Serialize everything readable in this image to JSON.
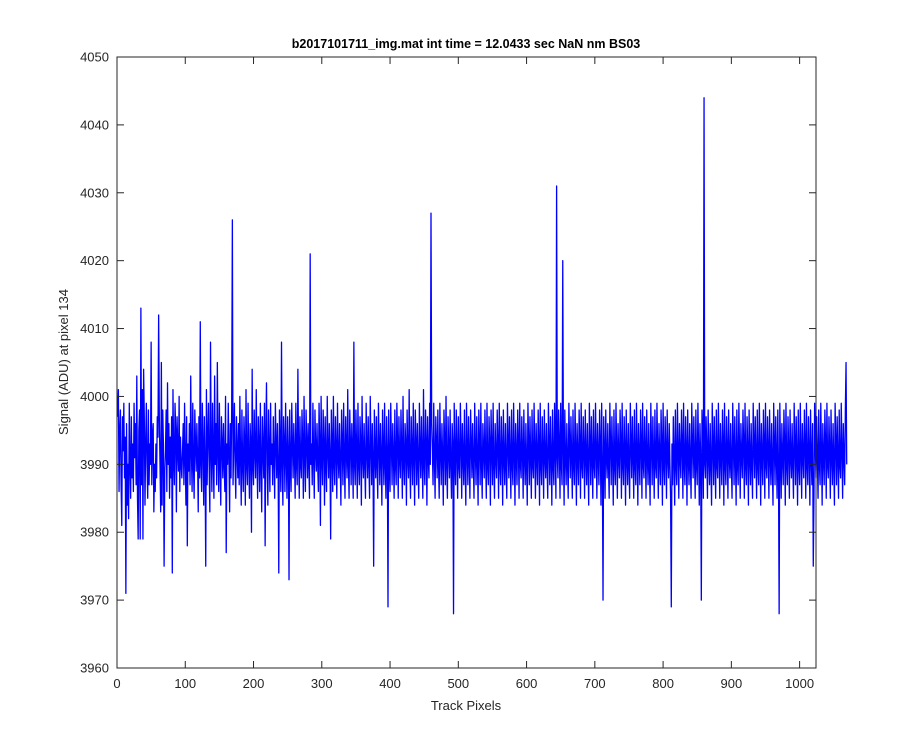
{
  "figure": {
    "background": "#ffffff"
  },
  "chart_data": {
    "type": "line",
    "title": "b2017101711_img.mat int time = 12.0433 sec  NaN nm BS03",
    "xlabel": "Track Pixels",
    "ylabel": "Signal (ADU) at pixel 134",
    "xlim": [
      0,
      1024
    ],
    "ylim": [
      3960,
      4050
    ],
    "x_ticks": [
      0,
      100,
      200,
      300,
      400,
      500,
      600,
      700,
      800,
      900,
      1000
    ],
    "y_ticks": [
      3960,
      3970,
      3980,
      3990,
      4000,
      4010,
      4020,
      4030,
      4040,
      4050
    ],
    "grid": false,
    "legend": "none",
    "series": [
      {
        "color": "#0000ff",
        "x_start": 1,
        "x_step": 1,
        "values": [
          3997,
          4001,
          3986,
          3995,
          3998,
          3987,
          3981,
          3997,
          3992,
          3999,
          3988,
          3994,
          3971,
          3996,
          3984,
          3990,
          3982,
          3999,
          3990,
          3985,
          3997,
          3988,
          3993,
          3986,
          3999,
          3991,
          3996,
          3987,
          4003,
          3985,
          3979,
          3995,
          3998,
          3979,
          4013,
          3987,
          4001,
          3979,
          4004,
          3997,
          3984,
          3993,
          3999,
          3990,
          3985,
          3998,
          3987,
          3993,
          3990,
          4008,
          3987,
          3994,
          3996,
          3983,
          3990,
          3986,
          3993,
          3988,
          3997,
          3994,
          4012,
          3997,
          3990,
          3983,
          4005,
          3984,
          3998,
          3993,
          3975,
          3989,
          3992,
          3998,
          3986,
          4002,
          3990,
          3996,
          3985,
          3994,
          3988,
          3997,
          3974,
          4001,
          3991,
          3987,
          3999,
          3995,
          3983,
          3997,
          3992,
          3989,
          4000,
          3986,
          3994,
          3990,
          3988,
          3992,
          3996,
          3987,
          3999,
          3991,
          3984,
          3997,
          3978,
          3993,
          3989,
          3996,
          3987,
          4003,
          3992,
          3986,
          3999,
          3990,
          3985,
          3998,
          3993,
          3989,
          3996,
          3991,
          3983,
          3997,
          3988,
          4011,
          3990,
          3986,
          3999,
          3993,
          3984,
          3997,
          3990,
          3975,
          4001,
          3987,
          3994,
          3999,
          3990,
          3983,
          4008,
          3992,
          3986,
          3999,
          3991,
          3985,
          4003,
          3990,
          3996,
          3987,
          4005,
          3992,
          3986,
          3999,
          3990,
          3984,
          3997,
          3993,
          3988,
          3996,
          3990,
          3986,
          4000,
          3977,
          3993,
          3990,
          3999,
          3991,
          3983,
          3996,
          3988,
          3998,
          4026,
          3987,
          3993,
          3999,
          3990,
          3985,
          3997,
          3992,
          3988,
          3996,
          3987,
          4000,
          3991,
          3984,
          3998,
          3990,
          3986,
          3997,
          3993,
          3984,
          4001,
          3990,
          3987,
          3999,
          3991,
          3985,
          3996,
          3993,
          3980,
          4004,
          3990,
          3987,
          3998,
          3992,
          3988,
          4001,
          3991,
          3985,
          3997,
          3993,
          3986,
          3999,
          3990,
          3983,
          3997,
          3992,
          3988,
          3999,
          3978,
          3994,
          4002,
          3990,
          3984,
          3998,
          3992,
          3986,
          3999,
          3990,
          3993,
          3987,
          3997,
          3991,
          3985,
          3999,
          3993,
          3988,
          3996,
          3990,
          3974,
          3998,
          3992,
          3986,
          4008,
          3990,
          3984,
          3997,
          3993,
          3986,
          3999,
          3991,
          3985,
          3997,
          3992,
          3973,
          3998,
          3990,
          3986,
          3999,
          3993,
          3988,
          3996,
          3991,
          3985,
          3999,
          3990,
          3987,
          4004,
          3992,
          3985,
          3997,
          3990,
          3988,
          3998,
          3993,
          3985,
          4000,
          3991,
          3986,
          3998,
          3993,
          3988,
          3996,
          3990,
          3985,
          4021,
          3990,
          3993,
          3987,
          3999,
          3991,
          3985,
          3998,
          3992,
          3989,
          3996,
          3990,
          3986,
          3999,
          3993,
          3981,
          4000,
          3991,
          3987,
          3998,
          3993,
          3984,
          3997,
          3990,
          3986,
          4000,
          3992,
          3988,
          3996,
          3991,
          3979,
          3998,
          3993,
          3986,
          4000,
          3990,
          3987,
          3997,
          3992,
          3985,
          3999,
          3991,
          3988,
          3996,
          3990,
          3984,
          3998,
          3993,
          3987,
          3999,
          3991,
          3985,
          3997,
          3992,
          3988,
          4001,
          3990,
          3985,
          3998,
          3993,
          3987,
          3996,
          3991,
          3985,
          4008,
          3990,
          3987,
          3998,
          3992,
          3985,
          3999,
          3990,
          3987,
          3997,
          3993,
          3984,
          4000,
          3991,
          3988,
          3996,
          3990,
          3985,
          3999,
          3992,
          3988,
          3997,
          3990,
          3985,
          4000,
          3993,
          3987,
          3996,
          3991,
          3975,
          3998,
          3992,
          3988,
          3997,
          3990,
          3985,
          3999,
          3993,
          3987,
          3996,
          3991,
          3984,
          3998,
          3992,
          3987,
          3999,
          3990,
          3985,
          3997,
          3992,
          3969,
          3998,
          3990,
          3986,
          3999,
          3993,
          3987,
          3996,
          3991,
          3985,
          3998,
          3990,
          3987,
          3999,
          3993,
          3985,
          3997,
          3991,
          3988,
          3998,
          3992,
          3985,
          4000,
          3990,
          3987,
          3996,
          3993,
          3984,
          3998,
          3991,
          3988,
          4001,
          3990,
          3985,
          3997,
          3992,
          3987,
          3999,
          3991,
          3984,
          3998,
          3993,
          3987,
          3996,
          3990,
          3985,
          3999,
          3992,
          3988,
          3997,
          3991,
          3985,
          4001,
          3990,
          3987,
          3998,
          3993,
          3984,
          3997,
          3991,
          3988,
          3999,
          3990,
          4027,
          3996,
          3992,
          3987,
          3999,
          3991,
          3985,
          3997,
          3993,
          3988,
          3998,
          3990,
          3985,
          3999,
          3992,
          3987,
          3996,
          3991,
          3984,
          3998,
          3993,
          3987,
          4000,
          3990,
          3985,
          3997,
          3992,
          3988,
          3998,
          3990,
          3985,
          3996,
          3993,
          3968,
          3999,
          3991,
          3987,
          3998,
          3992,
          3985,
          3997,
          3990,
          3988,
          3999,
          3993,
          3985,
          3996,
          3991,
          3987,
          3998,
          3990,
          3984,
          3999,
          3992,
          3987,
          3997,
          3991,
          3985,
          3998,
          3993,
          3988,
          3996,
          3990,
          3985,
          3999,
          3992,
          3987,
          3997,
          3991,
          3984,
          3998,
          3993,
          3987,
          3999,
          3990,
          3985,
          3996,
          3992,
          3988,
          3998,
          3991,
          3985,
          3999,
          3990,
          3987,
          3997,
          3993,
          3984,
          3998,
          3992,
          3987,
          3999,
          3990,
          3985,
          3996,
          3991,
          3988,
          3998,
          3993,
          3985,
          3999,
          3990,
          3987,
          3997,
          3992,
          3984,
          3998,
          3991,
          3987,
          3996,
          3990,
          3985,
          3999,
          3993,
          3988,
          3997,
          3991,
          3985,
          3998,
          3990,
          3987,
          3999,
          3992,
          3984,
          3996,
          3991,
          3987,
          3998,
          3993,
          3985,
          3999,
          3990,
          3988,
          3997,
          3992,
          3985,
          3998,
          3991,
          3987,
          3996,
          3990,
          3984,
          3999,
          3993,
          3987,
          3997,
          3991,
          3985,
          3998,
          3990,
          3988,
          3999,
          3992,
          3985,
          3996,
          3991,
          3987,
          3998,
          3993,
          3984,
          3999,
          3990,
          3987,
          3997,
          3992,
          3985,
          3998,
          3991,
          3988,
          3996,
          3990,
          3985,
          3999,
          3993,
          3987,
          3997,
          3991,
          3984,
          3998,
          3990,
          3987,
          3999,
          3992,
          3985,
          4031,
          3991,
          3988,
          3998,
          3993,
          3985,
          3999,
          3990,
          3987,
          4020,
          3992,
          3984,
          3998,
          3991,
          3987,
          3996,
          3990,
          3985,
          3999,
          3993,
          3988,
          3997,
          3991,
          3985,
          3998,
          3990,
          3987,
          3999,
          3992,
          3984,
          3996,
          3991,
          3987,
          3998,
          3993,
          3985,
          3999,
          3990,
          3988,
          3997,
          3992,
          3985,
          3998,
          3991,
          3987,
          3996,
          3990,
          3984,
          3999,
          3993,
          3987,
          3997,
          3991,
          3985,
          3998,
          3990,
          3988,
          3999,
          3992,
          3985,
          3996,
          3991,
          3987,
          3998,
          3993,
          3984,
          3999,
          3990,
          3970,
          3997,
          3992,
          3985,
          3998,
          3991,
          3988,
          3996,
          3990,
          3985,
          3999,
          3993,
          3987,
          3997,
          3991,
          3984,
          3998,
          3990,
          3987,
          3999,
          3992,
          3985,
          3996,
          3991,
          3988,
          3998,
          3993,
          3985,
          3999,
          3990,
          3987,
          3997,
          3992,
          3984,
          3998,
          3991,
          3987,
          3996,
          3990,
          3985,
          3999,
          3993,
          3988,
          3997,
          3991,
          3985,
          3998,
          3990,
          3987,
          3999,
          3992,
          3984,
          3996,
          3991,
          3987,
          3998,
          3993,
          3985,
          3999,
          3990,
          3988,
          3997,
          3992,
          3985,
          3998,
          3991,
          3987,
          3996,
          3990,
          3984,
          3999,
          3993,
          3987,
          3997,
          3991,
          3985,
          3998,
          3990,
          3988,
          3999,
          3992,
          3985,
          3996,
          3991,
          3987,
          3998,
          3993,
          3984,
          3999,
          3990,
          3987,
          3997,
          3992,
          3985,
          3998,
          3991,
          3988,
          3996,
          3990,
          3985,
          3969,
          3993,
          3987,
          3997,
          3991,
          3984,
          3998,
          3990,
          3987,
          3999,
          3992,
          3985,
          3996,
          3991,
          3988,
          3998,
          3993,
          3985,
          3999,
          3990,
          3987,
          3997,
          3992,
          3984,
          3998,
          3991,
          3987,
          3996,
          3990,
          3985,
          3999,
          3993,
          3988,
          3997,
          3991,
          3985,
          3998,
          3990,
          3987,
          3999,
          3992,
          3984,
          3996,
          3991,
          3970,
          3998,
          3993,
          3985,
          4044,
          3990,
          3988,
          3997,
          3992,
          3985,
          3998,
          3991,
          3987,
          3996,
          3990,
          3984,
          3999,
          3993,
          3987,
          3997,
          3991,
          3985,
          3998,
          3990,
          3988,
          3999,
          3992,
          3985,
          3996,
          3991,
          3987,
          3998,
          3993,
          3984,
          3999,
          3990,
          3987,
          3997,
          3992,
          3985,
          3998,
          3991,
          3988,
          3996,
          3990,
          3985,
          3999,
          3993,
          3987,
          3997,
          3991,
          3984,
          3998,
          3990,
          3987,
          3999,
          3992,
          3985,
          3996,
          3991,
          3988,
          3998,
          3993,
          3985,
          3999,
          3990,
          3987,
          3997,
          3992,
          3984,
          3998,
          3991,
          3987,
          3996,
          3990,
          3985,
          3999,
          3993,
          3988,
          3997,
          3991,
          3985,
          3998,
          3990,
          3987,
          3999,
          3992,
          3984,
          3996,
          3991,
          3987,
          3998,
          3993,
          3985,
          3999,
          3990,
          3988,
          3997,
          3992,
          3985,
          3998,
          3991,
          3987,
          3996,
          3990,
          3984,
          3999,
          3993,
          3987,
          3997,
          3991,
          3985,
          3998,
          3990,
          3968,
          3999,
          3992,
          3985,
          3996,
          3991,
          3987,
          3998,
          3993,
          3984,
          3999,
          3990,
          3987,
          3997,
          3992,
          3985,
          3998,
          3991,
          3988,
          3996,
          3990,
          3985,
          3999,
          3993,
          3987,
          3997,
          3991,
          3984,
          3998,
          3990,
          3987,
          3999,
          3992,
          3985,
          3996,
          3991,
          3988,
          3998,
          3993,
          3985,
          3999,
          3990,
          3987,
          3997,
          3992,
          3984,
          3998,
          3991,
          3987,
          3996,
          3975,
          3985,
          3999,
          3993,
          3988,
          3997,
          3991,
          3985,
          3998,
          3990,
          3987,
          3999,
          3992,
          3984,
          3996,
          3991,
          3987,
          3998,
          3993,
          3985,
          3999,
          3990,
          3988,
          3997,
          3992,
          3985,
          3998,
          3991,
          3987,
          3996,
          3990,
          3984,
          3999,
          3993,
          3987,
          3997,
          3991,
          3985,
          3998,
          3990,
          3988,
          3999,
          3992,
          3985,
          3996,
          3991,
          3987,
          3998,
          4005,
          3990
        ]
      }
    ]
  }
}
